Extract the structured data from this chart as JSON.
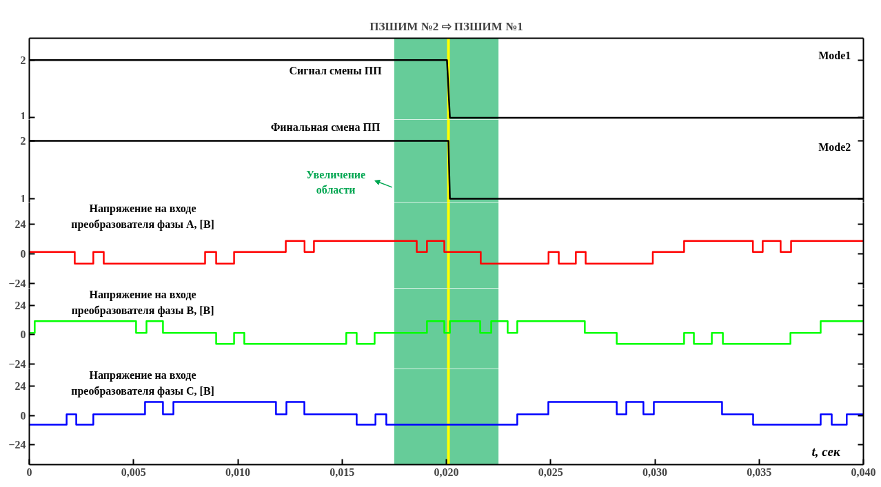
{
  "chart_data": [
    {
      "type": "line",
      "title": "ПЗШИМ №2 ⇨ ПЗШИМ №1",
      "xlim": [
        0,
        0.04
      ],
      "ylim": [
        0.97,
        2.38
      ],
      "yticks": [
        1,
        2
      ],
      "tick_labels": "y",
      "annotations": [
        "Mode1"
      ],
      "series": [
        {
          "name": "Сигнал смены ПП",
          "color": "#000000",
          "x": [
            0,
            0.02003,
            0.02017,
            0.04
          ],
          "values": [
            2,
            2,
            1,
            1
          ]
        }
      ],
      "bands": [
        {
          "axis": "x",
          "from": 0.0175,
          "to": 0.0225,
          "color": "#66cc99"
        }
      ],
      "ref_lines": [
        {
          "axis": "x",
          "value": 0.0201,
          "color": "#ffff00"
        }
      ]
    },
    {
      "type": "line",
      "xlim": [
        0,
        0.04
      ],
      "ylim": [
        0.94,
        2.37
      ],
      "yticks": [
        1,
        2
      ],
      "tick_labels": "y",
      "annotations": [
        "Mode2"
      ],
      "series": [
        {
          "name": "Финальная смена ПП",
          "color": "#000000",
          "x": [
            0,
            0.0201,
            0.02017,
            0.04
          ],
          "values": [
            2,
            2,
            1,
            1
          ]
        }
      ],
      "bands": [
        {
          "axis": "x",
          "from": 0.0175,
          "to": 0.0225,
          "color": "#66cc99",
          "label": "Увеличение\nобласти"
        }
      ],
      "ref_lines": [
        {
          "axis": "x",
          "value": 0.0201,
          "color": "#ffff00"
        }
      ]
    },
    {
      "type": "step",
      "xlim": [
        0,
        0.04
      ],
      "ylim": [
        -28,
        42
      ],
      "yticks": [
        -24,
        0,
        24
      ],
      "tick_labels": "y",
      "series": [
        {
          "name": "Напряжение на входе\nпреобразователя фазы A, [В]",
          "color": "#ff0000",
          "x": [
            0,
            0.00218,
            0.00307,
            0.00357,
            0.00843,
            0.00896,
            0.00982,
            0.0123,
            0.0132,
            0.01365,
            0.01858,
            0.01907,
            0.0199,
            0.02165,
            0.0249,
            0.02539,
            0.02621,
            0.02668,
            0.0299,
            0.0314,
            0.0347,
            0.03517,
            0.03603,
            0.03653,
            0.04
          ],
          "values": [
            1.5,
            -8,
            1.5,
            -8,
            1.5,
            -8,
            1.5,
            10.5,
            1.5,
            10.5,
            1.5,
            10.5,
            1.5,
            -8,
            1.5,
            -8,
            1.5,
            -8,
            1.5,
            10.5,
            1.5,
            10.5,
            1.5,
            10.5,
            10.5
          ]
        }
      ],
      "bands": [
        {
          "axis": "x",
          "from": 0.0175,
          "to": 0.0225,
          "color": "#66cc99"
        }
      ],
      "ref_lines": [
        {
          "axis": "x",
          "value": 0.0201,
          "color": "#ffff00"
        }
      ]
    },
    {
      "type": "step",
      "xlim": [
        0,
        0.04
      ],
      "ylim": [
        -28,
        38
      ],
      "yticks": [
        -24,
        0,
        24
      ],
      "tick_labels": "y",
      "series": [
        {
          "name": "Напряжение на входе\nпреобразователя фазы B, [В]",
          "color": "#00ff00",
          "x": [
            0,
            0.00026,
            0.00512,
            0.00562,
            0.00641,
            0.00896,
            0.00982,
            0.01031,
            0.0152,
            0.0157,
            0.01656,
            0.01907,
            0.0199,
            0.02017,
            0.02162,
            0.02215,
            0.02294,
            0.0234,
            0.02664,
            0.02817,
            0.0314,
            0.03187,
            0.03273,
            0.03326,
            0.0365,
            0.03795,
            0.04
          ],
          "values": [
            1.5,
            11,
            1.5,
            11,
            1.5,
            -7.5,
            1.5,
            -7.5,
            1.5,
            -7.5,
            1.5,
            11,
            1.5,
            11,
            1.5,
            11,
            1.5,
            11,
            1.5,
            -7.5,
            1.5,
            -7.5,
            1.5,
            -7.5,
            1.5,
            11,
            11
          ]
        }
      ],
      "bands": [
        {
          "axis": "x",
          "from": 0.0175,
          "to": 0.0225,
          "color": "#66cc99"
        }
      ],
      "ref_lines": [
        {
          "axis": "x",
          "value": 0.0201,
          "color": "#ffff00"
        }
      ]
    },
    {
      "type": "step",
      "xlim": [
        0,
        0.04
      ],
      "ylim": [
        -40,
        38
      ],
      "yticks": [
        -24,
        0,
        24
      ],
      "xlabel": "t, сек",
      "xticks": [
        0,
        {
          "value": 0.005,
          "label": "0,005"
        },
        {
          "value": 0.01,
          "label": "0,010"
        },
        {
          "value": 0.015,
          "label": "0,015"
        },
        {
          "value": 0.02,
          "label": "0,020"
        },
        {
          "value": 0.025,
          "label": "0,025"
        },
        {
          "value": 0.03,
          "label": "0,030"
        },
        {
          "value": 0.035,
          "label": "0,035"
        },
        {
          "value": 0.04,
          "label": "0,040"
        }
      ],
      "series": [
        {
          "name": "Напряжение на входе\nпреобразователя фазы C, [В]",
          "color": "#0000ff",
          "x": [
            0,
            0.00179,
            0.00225,
            0.00307,
            0.00555,
            0.00641,
            0.00691,
            0.01183,
            0.01233,
            0.01319,
            0.0157,
            0.0166,
            0.01712,
            0.0234,
            0.02489,
            0.02817,
            0.02863,
            0.02945,
            0.02995,
            0.03322,
            0.03471,
            0.03795,
            0.03848,
            0.0392,
            0.04
          ],
          "values": [
            -7.5,
            1,
            -7.5,
            1,
            11,
            1,
            11,
            1,
            11,
            1,
            -7.5,
            1,
            -7.5,
            1,
            11,
            1,
            11,
            1,
            11,
            1,
            -7.5,
            1,
            -7.5,
            1,
            1
          ]
        }
      ],
      "bands": [
        {
          "axis": "x",
          "from": 0.0175,
          "to": 0.0225,
          "color": "#66cc99"
        }
      ],
      "ref_lines": [
        {
          "axis": "x",
          "value": 0.0201,
          "color": "#ffff00"
        }
      ]
    }
  ]
}
